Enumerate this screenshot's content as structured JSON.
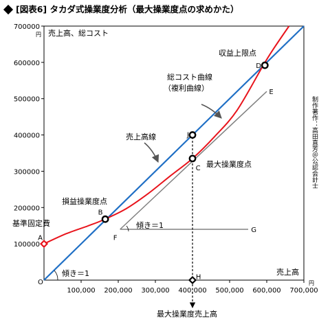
{
  "title": "[図表6] タカダ式操業度分析（最大操業度点の求めかた）",
  "chart_data": {
    "type": "line",
    "xlabel": "売上高",
    "x_unit": "円",
    "ylabel": "売上高、総コスト",
    "y_unit": "円",
    "xlim": [
      0,
      700000
    ],
    "ylim": [
      0,
      700000
    ],
    "x_ticks": [
      {
        "v": 100000,
        "label": "100,000"
      },
      {
        "v": 200000,
        "label": "200,000"
      },
      {
        "v": 300000,
        "label": "300,000"
      },
      {
        "v": 400000,
        "label": "400,000"
      },
      {
        "v": 500000,
        "label": "500,000"
      },
      {
        "v": 600000,
        "label": "600,000"
      },
      {
        "v": 700000,
        "label": "700,000"
      }
    ],
    "y_ticks": [
      {
        "v": 100000,
        "label": "100000"
      },
      {
        "v": 200000,
        "label": "200000"
      },
      {
        "v": 300000,
        "label": "300000"
      },
      {
        "v": 400000,
        "label": "400000"
      },
      {
        "v": 500000,
        "label": "500000"
      },
      {
        "v": 600000,
        "label": "600000"
      },
      {
        "v": 700000,
        "label": "700000"
      }
    ],
    "origin_label": "O",
    "series": [
      {
        "key": "sales",
        "color": "#1f6fc5",
        "points": [
          [
            0,
            0
          ],
          [
            700000,
            700000
          ]
        ]
      },
      {
        "key": "cost",
        "color": "#e8141c",
        "points": [
          [
            0,
            100000
          ],
          [
            60000,
            128000
          ],
          [
            120000,
            150000
          ],
          [
            160000,
            166000
          ],
          [
            220000,
            196000
          ],
          [
            280000,
            238000
          ],
          [
            340000,
            287000
          ],
          [
            400000,
            335000
          ],
          [
            460000,
            396000
          ],
          [
            520000,
            468000
          ],
          [
            590000,
            591000
          ],
          [
            620000,
            640000
          ],
          [
            660000,
            700000
          ]
        ]
      },
      {
        "key": "tangent",
        "color": "#808080",
        "points": [
          [
            205000,
            140000
          ],
          [
            600000,
            520000
          ]
        ]
      },
      {
        "key": "slope_guide",
        "color": "#808080",
        "points": [
          [
            205000,
            140000
          ],
          [
            550000,
            140000
          ]
        ]
      }
    ],
    "markers": [
      {
        "id": "A",
        "shape": "diamond",
        "x": 0,
        "y": 100000
      },
      {
        "id": "B",
        "shape": "circle",
        "x": 165000,
        "y": 168000
      },
      {
        "id": "C",
        "shape": "circle",
        "x": 400000,
        "y": 335000
      },
      {
        "id": "D",
        "shape": "circle",
        "x": 595000,
        "y": 592000
      },
      {
        "id": "J",
        "shape": "circle",
        "x": 400000,
        "y": 400000
      },
      {
        "id": "H",
        "shape": "diamond",
        "x": 400000,
        "y": 0
      }
    ],
    "point_labels": [
      {
        "text": "A",
        "x": -10000,
        "y": 118000
      },
      {
        "text": "B",
        "x": 152000,
        "y": 188000
      },
      {
        "text": "C",
        "x": 415000,
        "y": 310000
      },
      {
        "text": "D",
        "x": 578000,
        "y": 592000
      },
      {
        "text": "E",
        "x": 612000,
        "y": 520000
      },
      {
        "text": "F",
        "x": 192000,
        "y": 118000
      },
      {
        "text": "G",
        "x": 565000,
        "y": 140000
      },
      {
        "text": "H",
        "x": 416000,
        "y": 10000
      },
      {
        "text": "J",
        "x": 388000,
        "y": 402000
      }
    ],
    "annotations": {
      "fixed_cost": "基準固定費",
      "break_even": "損益操業度点",
      "max_operation": "最大操業度点",
      "profit_limit": "収益上限点",
      "total_cost_curve": "総コスト曲線",
      "compound_curve": "（複利曲線）",
      "sales_line": "売上高線",
      "slope_fg": "傾き＝1",
      "slope_origin": "傾き＝1",
      "max_op_sales": "最大操業度売上高",
      "author": "制作著作：高田直芳＠公認会計士"
    }
  }
}
